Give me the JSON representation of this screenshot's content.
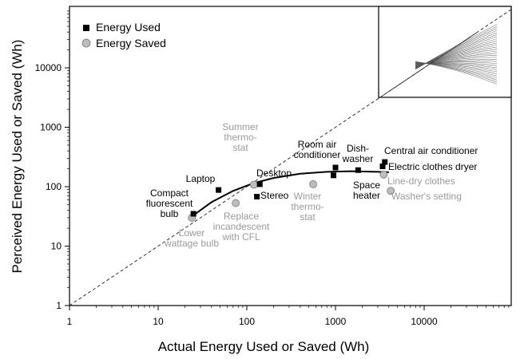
{
  "chart_data": {
    "type": "scatter",
    "title": "",
    "xlabel": "Actual Energy Used or Saved (Wh)",
    "ylabel": "Perceived Energy Used or Saved (Wh)",
    "xscale": "log",
    "yscale": "log",
    "xlim": [
      1,
      100000
    ],
    "ylim": [
      1,
      100000
    ],
    "x_ticks": [
      1,
      10,
      100,
      1000,
      10000
    ],
    "x_tick_labels": [
      "1",
      "10",
      "100",
      "1000",
      "10000"
    ],
    "y_ticks": [
      1,
      10,
      100,
      1000,
      10000
    ],
    "y_tick_labels": [
      "1",
      "10",
      "100",
      "1000",
      "10000"
    ],
    "grid": false,
    "legend": {
      "placement": "top-left",
      "entries": [
        {
          "label": "Energy Used",
          "marker": "square",
          "color": "#000000"
        },
        {
          "label": "Energy Saved",
          "marker": "circle",
          "color": "#bdbdbd"
        }
      ]
    },
    "reference_line": {
      "label": "y = x",
      "style": "dashed"
    },
    "fit_curve": {
      "label": "fitted curve",
      "points": [
        [
          25,
          33
        ],
        [
          40,
          55
        ],
        [
          70,
          85
        ],
        [
          120,
          115
        ],
        [
          200,
          140
        ],
        [
          400,
          165
        ],
        [
          800,
          178
        ],
        [
          1500,
          182
        ],
        [
          3000,
          178
        ],
        [
          4000,
          175
        ]
      ]
    },
    "series": [
      {
        "name": "Energy Used",
        "color": "#000000",
        "points": [
          {
            "x": 25,
            "y": 35,
            "label": "Compact fluorescent bulb"
          },
          {
            "x": 48,
            "y": 88,
            "label": "Laptop"
          },
          {
            "x": 140,
            "y": 110,
            "label": "Desktop"
          },
          {
            "x": 130,
            "y": 68,
            "label": "Stereo"
          },
          {
            "x": 1000,
            "y": 210,
            "label": "Room air conditioner"
          },
          {
            "x": 950,
            "y": 155,
            "label": "Space heater"
          },
          {
            "x": 1800,
            "y": 190,
            "label": "Dish-washer"
          },
          {
            "x": 3600,
            "y": 260,
            "label": "Central air conditioner"
          },
          {
            "x": 3400,
            "y": 220,
            "label": "Electric clothes dryer"
          }
        ]
      },
      {
        "name": "Energy Saved",
        "color": "#bdbdbd",
        "points": [
          {
            "x": 24,
            "y": 30,
            "label": "Lower wattage bulb"
          },
          {
            "x": 75,
            "y": 53,
            "label": "Replace incandescent with CFL"
          },
          {
            "x": 120,
            "y": 108,
            "label": "Summer thermo-stat"
          },
          {
            "x": 560,
            "y": 110,
            "label": "Winter thermo-stat"
          },
          {
            "x": 3500,
            "y": 160,
            "label": "Line-dry clothes"
          },
          {
            "x": 4200,
            "y": 85,
            "label": "Washer's setting"
          }
        ]
      }
    ],
    "annotations": [
      {
        "text": [
          "Compact",
          "fluorescent",
          "bulb"
        ],
        "color": "#000000"
      },
      {
        "text": [
          "Laptop"
        ],
        "color": "#000000"
      },
      {
        "text": [
          "Desktop"
        ],
        "color": "#000000"
      },
      {
        "text": [
          "Stereo"
        ],
        "color": "#000000"
      },
      {
        "text": [
          "Room air",
          "conditioner"
        ],
        "color": "#000000"
      },
      {
        "text": [
          "Space",
          "heater"
        ],
        "color": "#000000"
      },
      {
        "text": [
          "Dish-",
          "washer"
        ],
        "color": "#000000"
      },
      {
        "text": [
          "Central air conditioner"
        ],
        "color": "#000000"
      },
      {
        "text": [
          "Electric clothes dryer"
        ],
        "color": "#000000"
      },
      {
        "text": [
          "Lower",
          "wattage bulb"
        ],
        "color": "#9a9a9a"
      },
      {
        "text": [
          "Replace",
          "incandescent",
          "with CFL"
        ],
        "color": "#9a9a9a"
      },
      {
        "text": [
          "Summer",
          "thermo-",
          "stat"
        ],
        "color": "#9a9a9a"
      },
      {
        "text": [
          "Winter",
          "thermo-",
          "stat"
        ],
        "color": "#9a9a9a"
      },
      {
        "text": [
          "Line-dry clothes"
        ],
        "color": "#9a9a9a"
      },
      {
        "text": [
          "Washer's setting"
        ],
        "color": "#9a9a9a"
      }
    ],
    "inset": {
      "description": "individual participant fitted curves",
      "position": "top-right",
      "curve_count": 30
    }
  }
}
